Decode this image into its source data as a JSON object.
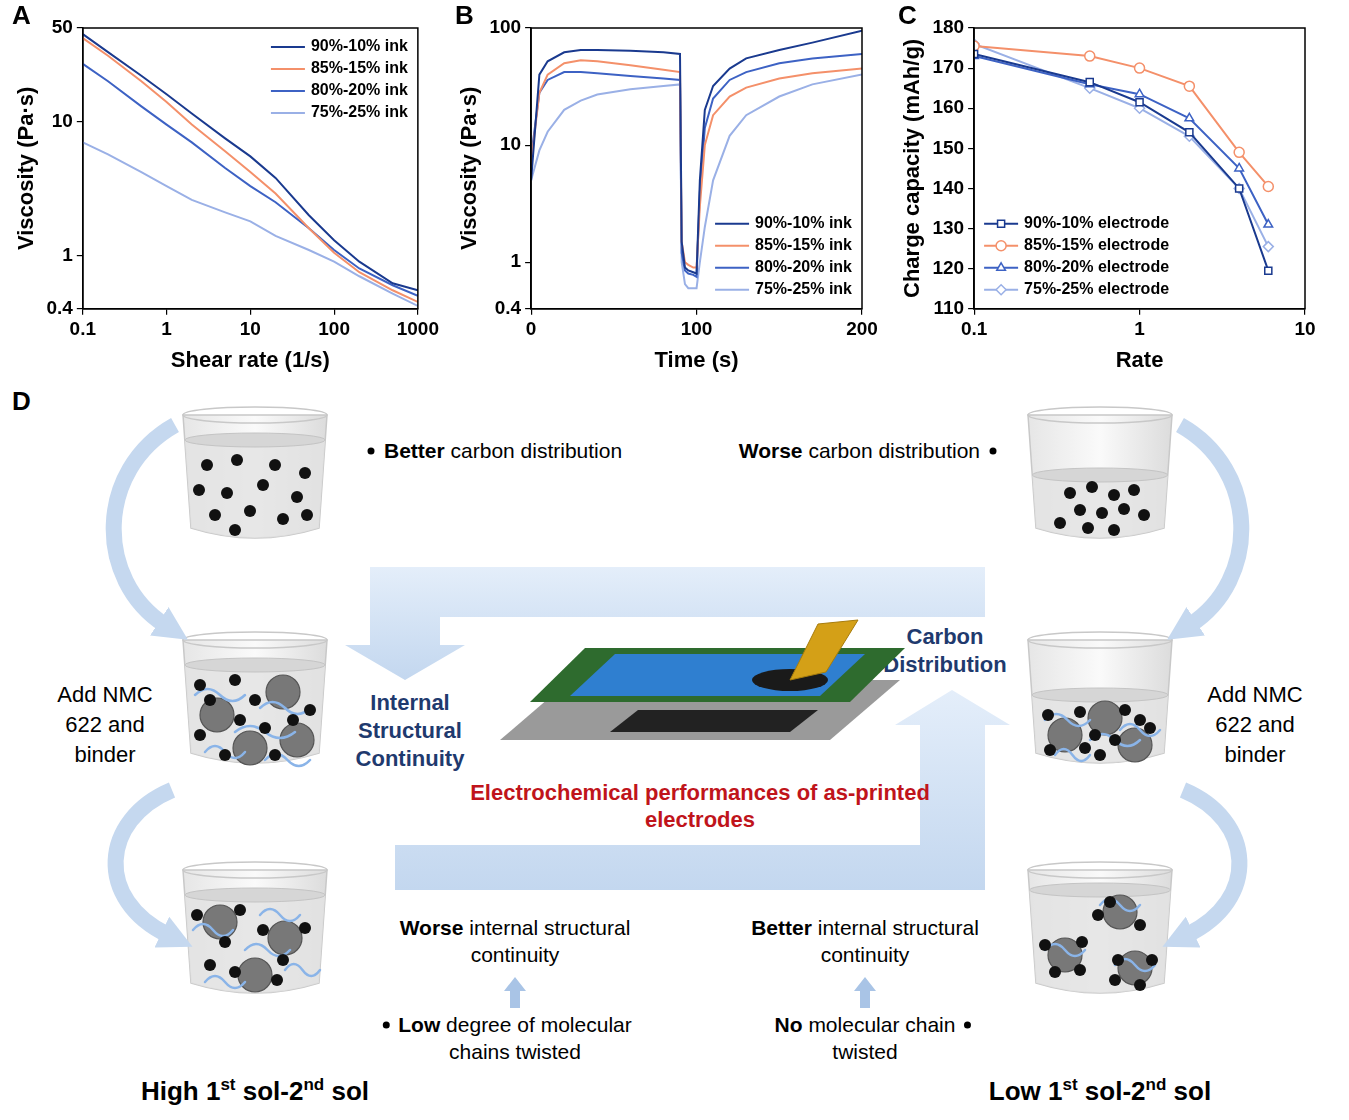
{
  "chart_data": [
    {
      "panel": "A",
      "type": "line",
      "x_label": "Shear rate (1/s)",
      "y_label": "Viscosity (Pa·s)",
      "log": true,
      "grid": false,
      "legend": "upper right",
      "xlim": [
        0.1,
        1000
      ],
      "ylim": [
        0.4,
        50
      ],
      "xticks": [
        0.1,
        1,
        10,
        100,
        1000
      ],
      "yticks": [
        0.4,
        1,
        10,
        50
      ],
      "x": [
        0.1,
        0.2,
        0.5,
        1,
        2,
        5,
        10,
        20,
        50,
        100,
        200,
        500,
        1000
      ],
      "series": [
        {
          "name": "90%-10% ink",
          "color": "#1a3a8f",
          "values": [
            45,
            33,
            22,
            16,
            11.5,
            7.5,
            5.5,
            3.8,
            2.0,
            1.3,
            0.9,
            0.62,
            0.55
          ]
        },
        {
          "name": "85%-15% ink",
          "color": "#f4906a",
          "values": [
            42,
            31,
            20,
            14,
            9.5,
            6,
            4.2,
            2.9,
            1.6,
            1.05,
            0.75,
            0.55,
            0.45
          ]
        },
        {
          "name": "80%-20% ink",
          "color": "#3d62c4",
          "values": [
            27,
            20,
            13,
            9.5,
            7,
            4.5,
            3.3,
            2.5,
            1.6,
            1.1,
            0.8,
            0.6,
            0.5
          ]
        },
        {
          "name": "75%-25% ink",
          "color": "#9ab0e6",
          "values": [
            7,
            5.7,
            4.2,
            3.3,
            2.6,
            2.1,
            1.8,
            1.4,
            1.1,
            0.9,
            0.7,
            0.52,
            0.42
          ]
        }
      ]
    },
    {
      "panel": "B",
      "type": "line",
      "x_label": "Time (s)",
      "y_label": "Viscosity (Pa·s)",
      "log": "y",
      "grid": false,
      "legend": "lower right",
      "xlim": [
        0,
        200
      ],
      "ylim": [
        0.4,
        100
      ],
      "xticks": [
        0,
        100,
        200
      ],
      "yticks": [
        0.4,
        1,
        10,
        100
      ],
      "x": [
        0,
        5,
        10,
        20,
        30,
        40,
        60,
        80,
        90,
        91,
        93,
        95,
        98,
        100,
        102,
        105,
        110,
        120,
        130,
        150,
        170,
        200
      ],
      "series": [
        {
          "name": "90%-10% ink",
          "color": "#1a3a8f",
          "values": [
            5,
            40,
            52,
            62,
            65,
            65,
            64,
            62,
            60,
            1.5,
            0.9,
            0.85,
            0.82,
            0.8,
            5,
            20,
            32,
            45,
            55,
            65,
            75,
            95
          ]
        },
        {
          "name": "85%-15% ink",
          "color": "#f4906a",
          "values": [
            7,
            28,
            40,
            50,
            53,
            52,
            48,
            44,
            42,
            1.5,
            1.0,
            0.95,
            0.9,
            0.9,
            3,
            10,
            18,
            26,
            31,
            37,
            41,
            45
          ]
        },
        {
          "name": "80%-20% ink",
          "color": "#3d62c4",
          "values": [
            8,
            28,
            36,
            42,
            42,
            41,
            39,
            37,
            36,
            1.2,
            0.85,
            0.8,
            0.78,
            0.75,
            4,
            14,
            25,
            36,
            42,
            50,
            55,
            60
          ]
        },
        {
          "name": "75%-25% ink",
          "color": "#9ab0e6",
          "values": [
            5,
            9,
            13,
            20,
            24,
            27,
            30,
            32,
            33,
            1,
            0.65,
            0.6,
            0.6,
            0.6,
            1,
            2,
            5,
            12,
            18,
            26,
            33,
            40
          ]
        }
      ]
    },
    {
      "panel": "C",
      "type": "line",
      "x_label": "Rate",
      "y_label": "Charge capacity (mAh/g)",
      "log": "x",
      "grid": false,
      "legend": "lower left",
      "xlim": [
        0.1,
        10
      ],
      "ylim": [
        110,
        180
      ],
      "xticks": [
        0.1,
        1,
        10
      ],
      "yticks": [
        110,
        120,
        130,
        140,
        150,
        160,
        170,
        180
      ],
      "x": [
        0.1,
        0.5,
        1,
        2,
        4,
        6
      ],
      "series": [
        {
          "name": "90%-10% electrode",
          "color": "#1a3a8f",
          "marker": "square",
          "values": [
            173.5,
            166.5,
            161.5,
            154,
            140,
            119.5
          ]
        },
        {
          "name": "85%-15% electrode",
          "color": "#f4906a",
          "marker": "circle",
          "values": [
            175.5,
            173,
            170,
            165.5,
            149,
            140.5
          ]
        },
        {
          "name": "80%-20% electrode",
          "color": "#3d62c4",
          "marker": "triangle",
          "values": [
            173,
            166,
            163.5,
            157.5,
            145,
            131
          ]
        },
        {
          "name": "75%-25% electrode",
          "color": "#9ab0e6",
          "marker": "diamond",
          "values": [
            176,
            165,
            160,
            153,
            140,
            125.5
          ]
        }
      ]
    }
  ],
  "diagram": {
    "panel": "D",
    "left": {
      "title": "High 1st sol-2nd sol",
      "top_note": {
        "bold": "Better",
        "text": "carbon distribution"
      },
      "step_label": "Add NMC 622 and binder",
      "bottom_note": {
        "bold": "Worse",
        "text": "internal structural continuity"
      },
      "bottom_bullet": {
        "bold": "Low",
        "text": "degree of molecular chains twisted"
      }
    },
    "right": {
      "title": "Low 1st sol-2nd sol",
      "top_note": {
        "bold": "Worse",
        "text": "carbon distribution"
      },
      "step_label": "Add NMC 622 and binder",
      "bottom_note": {
        "bold": "Better",
        "text": "internal structural continuity"
      },
      "bottom_bullet": {
        "bold": "No",
        "text": "molecular chain twisted"
      }
    },
    "center": {
      "left_arrow_label": "Internal Structural Continuity",
      "right_arrow_label": "Carbon Distribution",
      "caption": "Electrochemical performances of as-printed electrodes"
    }
  }
}
